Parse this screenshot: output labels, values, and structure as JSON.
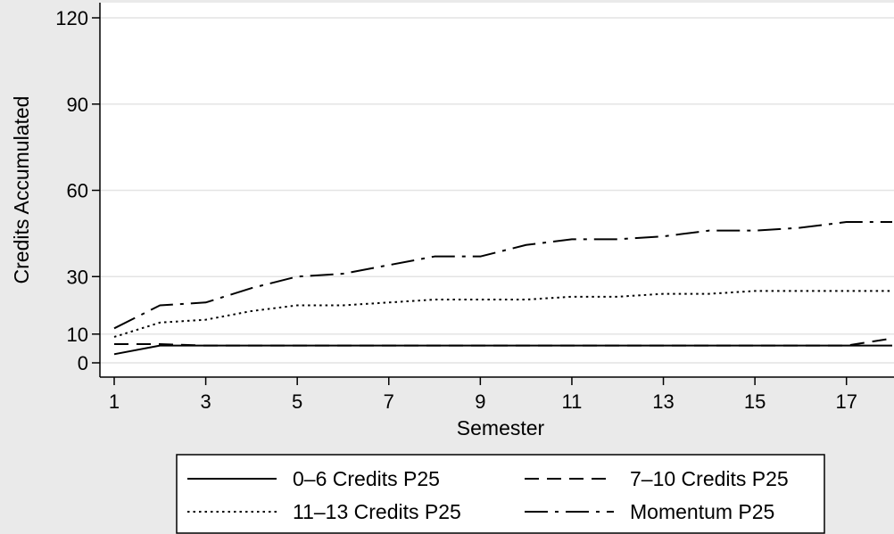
{
  "chart_data": {
    "type": "line",
    "title": "",
    "xlabel": "Semester",
    "ylabel": "Credits Accumulated",
    "xlim": [
      1,
      18
    ],
    "ylim": [
      0,
      120
    ],
    "x_ticks": [
      1,
      3,
      5,
      7,
      9,
      11,
      13,
      15,
      17
    ],
    "y_ticks": [
      0,
      10,
      30,
      60,
      90,
      120
    ],
    "grid": true,
    "legend_position": "bottom",
    "x": [
      1,
      2,
      3,
      4,
      5,
      6,
      7,
      8,
      9,
      10,
      11,
      12,
      13,
      14,
      15,
      16,
      17,
      18
    ],
    "series": [
      {
        "name": "0–6 Credits P25",
        "dash": "solid",
        "values": [
          3,
          6,
          6,
          6,
          6,
          6,
          6,
          6,
          6,
          6,
          6,
          6,
          6,
          6,
          6,
          6,
          6,
          6
        ]
      },
      {
        "name": "7–10 Credits P25",
        "dash": "dash",
        "values": [
          6.5,
          6.5,
          6,
          6,
          6,
          6,
          6,
          6,
          6,
          6,
          6,
          6,
          6,
          6,
          6,
          6,
          6,
          8.5
        ]
      },
      {
        "name": "11–13 Credits P25",
        "dash": "dot",
        "values": [
          9,
          14,
          15,
          18,
          20,
          20,
          21,
          22,
          22,
          22,
          23,
          23,
          24,
          24,
          25,
          25,
          25,
          25
        ]
      },
      {
        "name": "Momentum P25",
        "dash": "dashdot",
        "values": [
          12,
          20,
          21,
          26,
          30,
          31,
          34,
          37,
          37,
          41,
          43,
          43,
          44,
          46,
          46,
          47,
          49,
          49
        ]
      }
    ]
  }
}
